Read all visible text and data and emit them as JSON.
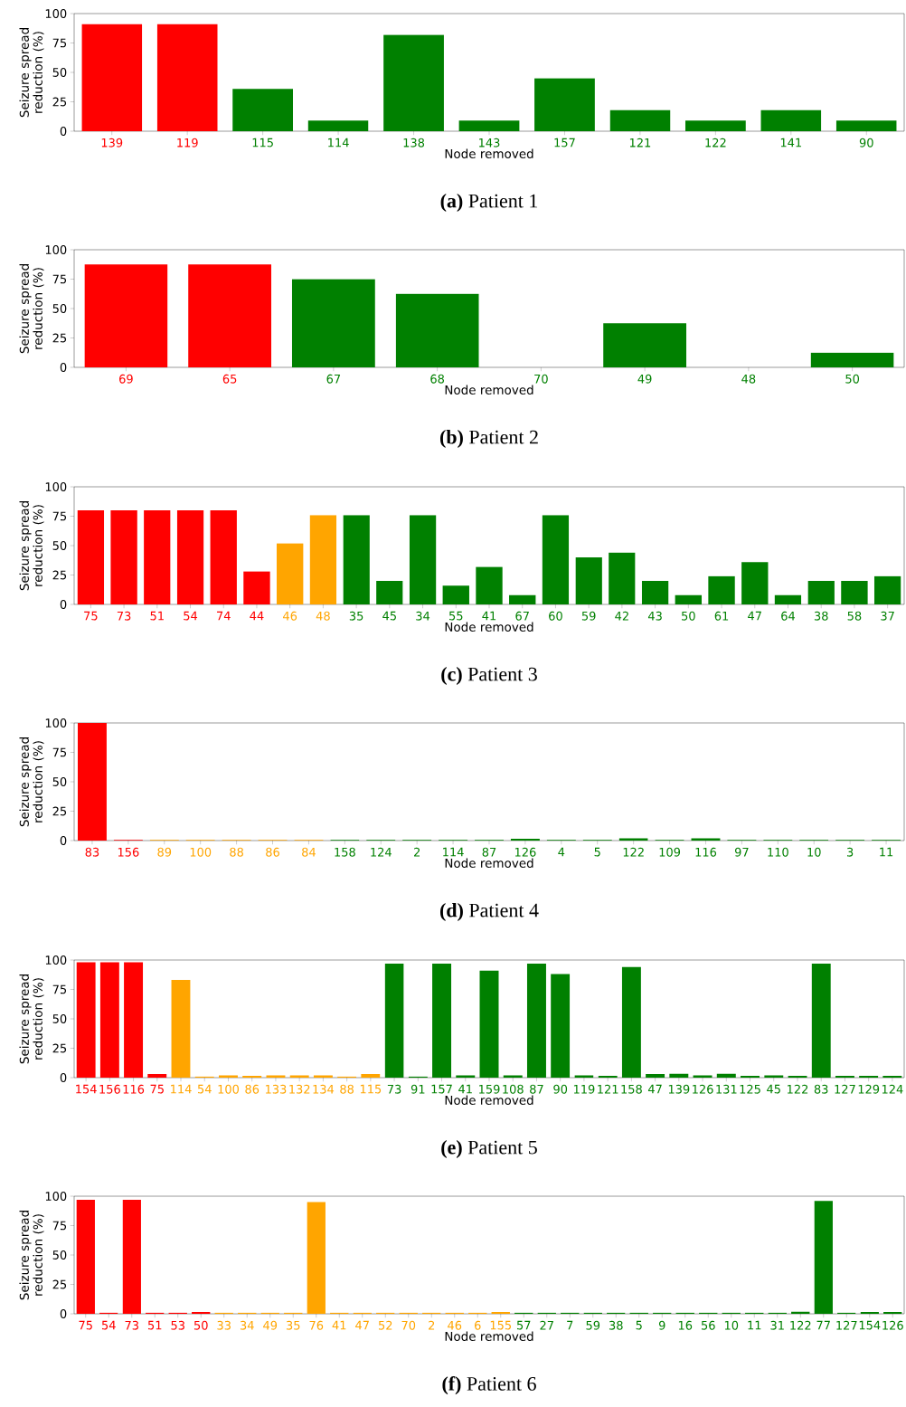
{
  "chart_data": [
    {
      "type": "bar",
      "title": "**(a)** Patient 1",
      "xlabel": "Node removed",
      "ylabel": "Seizure spread reduction (%)",
      "ylim": [
        0,
        100
      ],
      "yticks": [
        0,
        25,
        50,
        75,
        100
      ],
      "categories": [
        "139",
        "119",
        "115",
        "114",
        "138",
        "143",
        "157",
        "121",
        "122",
        "141",
        "90"
      ],
      "values": [
        91,
        91,
        36,
        9,
        82,
        9,
        45,
        18,
        9,
        18,
        9
      ],
      "colors": [
        "#ff0000",
        "#ff0000",
        "#008000",
        "#008000",
        "#008000",
        "#008000",
        "#008000",
        "#008000",
        "#008000",
        "#008000",
        "#008000"
      ]
    },
    {
      "type": "bar",
      "title": "**(b)** Patient 2",
      "xlabel": "Node removed",
      "ylabel": "Seizure spread reduction (%)",
      "ylim": [
        0,
        100
      ],
      "yticks": [
        0,
        25,
        50,
        75,
        100
      ],
      "categories": [
        "69",
        "65",
        "67",
        "68",
        "70",
        "49",
        "48",
        "50"
      ],
      "values": [
        87.5,
        87.5,
        75,
        62.5,
        0,
        37.5,
        0,
        12.5
      ],
      "colors": [
        "#ff0000",
        "#ff0000",
        "#008000",
        "#008000",
        "#008000",
        "#008000",
        "#008000",
        "#008000"
      ]
    },
    {
      "type": "bar",
      "title": "**(c)** Patient 3",
      "xlabel": "Node removed",
      "ylabel": "Seizure spread reduction (%)",
      "ylim": [
        0,
        100
      ],
      "yticks": [
        0,
        25,
        50,
        75,
        100
      ],
      "categories": [
        "75",
        "73",
        "51",
        "54",
        "74",
        "44",
        "46",
        "48",
        "35",
        "45",
        "34",
        "55",
        "41",
        "67",
        "60",
        "59",
        "42",
        "43",
        "50",
        "61",
        "47",
        "64",
        "38",
        "58",
        "37"
      ],
      "values": [
        80,
        80,
        80,
        80,
        80,
        28,
        52,
        76,
        76,
        20,
        76,
        16,
        32,
        8,
        76,
        40,
        44,
        20,
        8,
        24,
        36,
        8,
        20,
        20,
        24
      ],
      "colors": [
        "#ff0000",
        "#ff0000",
        "#ff0000",
        "#ff0000",
        "#ff0000",
        "#ff0000",
        "#ffa500",
        "#ffa500",
        "#008000",
        "#008000",
        "#008000",
        "#008000",
        "#008000",
        "#008000",
        "#008000",
        "#008000",
        "#008000",
        "#008000",
        "#008000",
        "#008000",
        "#008000",
        "#008000",
        "#008000",
        "#008000",
        "#008000"
      ]
    },
    {
      "type": "bar",
      "title": "**(d)** Patient 4",
      "xlabel": "Node removed",
      "ylabel": "Seizure spread reduction (%)",
      "ylim": [
        0,
        100
      ],
      "yticks": [
        0,
        25,
        50,
        75,
        100
      ],
      "categories": [
        "83",
        "156",
        "89",
        "100",
        "88",
        "86",
        "84",
        "158",
        "124",
        "2",
        "114",
        "87",
        "126",
        "4",
        "5",
        "122",
        "109",
        "116",
        "97",
        "110",
        "10",
        "3",
        "11"
      ],
      "values": [
        100,
        0.5,
        0.5,
        0.5,
        0.5,
        0.5,
        0.5,
        0.5,
        0.5,
        0.5,
        0.5,
        0.5,
        1.5,
        0.5,
        0.5,
        2,
        0.5,
        2,
        0.5,
        0.5,
        0.5,
        0.5,
        0.5
      ],
      "colors": [
        "#ff0000",
        "#ff0000",
        "#ffa500",
        "#ffa500",
        "#ffa500",
        "#ffa500",
        "#ffa500",
        "#008000",
        "#008000",
        "#008000",
        "#008000",
        "#008000",
        "#008000",
        "#008000",
        "#008000",
        "#008000",
        "#008000",
        "#008000",
        "#008000",
        "#008000",
        "#008000",
        "#008000",
        "#008000"
      ]
    },
    {
      "type": "bar",
      "title": "**(e)** Patient 5",
      "xlabel": "Node removed",
      "ylabel": "Seizure spread reduction (%)",
      "ylim": [
        0,
        100
      ],
      "yticks": [
        0,
        25,
        50,
        75,
        100
      ],
      "categories": [
        "154",
        "156",
        "116",
        "75",
        "114",
        "54",
        "100",
        "86",
        "133",
        "132",
        "134",
        "88",
        "115",
        "73",
        "91",
        "157",
        "41",
        "159",
        "108",
        "87",
        "90",
        "119",
        "121",
        "158",
        "47",
        "139",
        "126",
        "131",
        "125",
        "45",
        "122",
        "83",
        "127",
        "129",
        "124"
      ],
      "values": [
        98,
        98,
        98,
        3,
        83,
        1,
        2,
        1.5,
        2,
        2,
        2,
        1,
        3,
        97,
        1,
        97,
        2,
        91,
        2,
        97,
        88,
        2,
        1.5,
        94,
        3,
        3.5,
        2,
        3.5,
        1.5,
        2,
        1.5,
        97,
        1.5,
        1.5,
        1.5
      ],
      "colors": [
        "#ff0000",
        "#ff0000",
        "#ff0000",
        "#ff0000",
        "#ffa500",
        "#ffa500",
        "#ffa500",
        "#ffa500",
        "#ffa500",
        "#ffa500",
        "#ffa500",
        "#ffa500",
        "#ffa500",
        "#008000",
        "#008000",
        "#008000",
        "#008000",
        "#008000",
        "#008000",
        "#008000",
        "#008000",
        "#008000",
        "#008000",
        "#008000",
        "#008000",
        "#008000",
        "#008000",
        "#008000",
        "#008000",
        "#008000",
        "#008000",
        "#008000",
        "#008000",
        "#008000",
        "#008000"
      ]
    },
    {
      "type": "bar",
      "title": "**(f)** Patient 6",
      "xlabel": "Node removed",
      "ylabel": "Seizure spread reduction (%)",
      "ylim": [
        0,
        100
      ],
      "yticks": [
        0,
        25,
        50,
        75,
        100
      ],
      "categories": [
        "75",
        "54",
        "73",
        "51",
        "53",
        "50",
        "33",
        "34",
        "49",
        "35",
        "76",
        "41",
        "47",
        "52",
        "70",
        "2",
        "46",
        "6",
        "155",
        "57",
        "27",
        "7",
        "59",
        "38",
        "5",
        "9",
        "16",
        "56",
        "10",
        "11",
        "31",
        "122",
        "77",
        "127",
        "154",
        "126"
      ],
      "values": [
        97,
        1,
        97,
        1,
        1,
        1.5,
        1,
        1,
        1,
        1,
        95,
        1,
        1,
        1,
        1,
        1,
        1,
        1,
        1.5,
        1,
        1,
        1,
        1,
        1,
        1,
        1,
        1,
        1,
        1,
        1,
        1,
        2,
        96,
        1,
        1.5,
        1.5
      ],
      "colors": [
        "#ff0000",
        "#ff0000",
        "#ff0000",
        "#ff0000",
        "#ff0000",
        "#ff0000",
        "#ffa500",
        "#ffa500",
        "#ffa500",
        "#ffa500",
        "#ffa500",
        "#ffa500",
        "#ffa500",
        "#ffa500",
        "#ffa500",
        "#ffa500",
        "#ffa500",
        "#ffa500",
        "#ffa500",
        "#008000",
        "#008000",
        "#008000",
        "#008000",
        "#008000",
        "#008000",
        "#008000",
        "#008000",
        "#008000",
        "#008000",
        "#008000",
        "#008000",
        "#008000",
        "#008000",
        "#008000",
        "#008000",
        "#008000"
      ]
    }
  ]
}
